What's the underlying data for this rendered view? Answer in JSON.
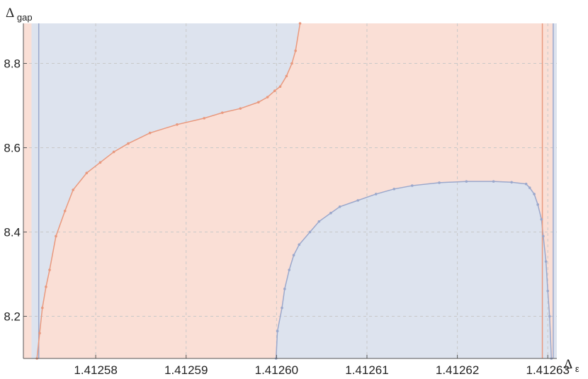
{
  "chart_data": {
    "type": "area",
    "xlabel": {
      "main": "Δ",
      "sub": "ε"
    },
    "ylabel": {
      "main": "Δ",
      "sub": "gap"
    },
    "xlim": [
      1.412572,
      1.412631
    ],
    "ylim": [
      8.1,
      8.895
    ],
    "x_ticks": [
      1.41258,
      1.41259,
      1.4126,
      1.41261,
      1.41262,
      1.41263
    ],
    "x_tick_labels": [
      "1.41258",
      "1.41259",
      "1.41260",
      "1.41261",
      "1.41262",
      "1.41263"
    ],
    "y_ticks": [
      8.2,
      8.4,
      8.6,
      8.8
    ],
    "y_tick_labels": [
      "8.2",
      "8.4",
      "8.6",
      "8.8"
    ],
    "grid": true,
    "colors": {
      "allowed_fill": "#fadfd6",
      "excluded_fill": "#dde3ee",
      "boundary_orange": "#e9997e",
      "boundary_blue": "#9ba8cc",
      "gridline": "#c8c8c8",
      "axis": "#555555"
    },
    "regions": [
      {
        "type": "excluded-strip-left",
        "x": [
          1.4125729,
          1.4125737
        ]
      },
      {
        "type": "excluded-strip-right",
        "x": [
          1.4126306,
          1.412631
        ]
      }
    ],
    "boundary_upper_left": [
      [
        1.4125735,
        8.1
      ],
      [
        1.4125738,
        8.16
      ],
      [
        1.4125741,
        8.22
      ],
      [
        1.4125745,
        8.27
      ],
      [
        1.4125749,
        8.31
      ],
      [
        1.4125756,
        8.39
      ],
      [
        1.4125766,
        8.45
      ],
      [
        1.4125775,
        8.5
      ],
      [
        1.412579,
        8.54
      ],
      [
        1.4125805,
        8.565
      ],
      [
        1.412582,
        8.59
      ],
      [
        1.4125836,
        8.61
      ],
      [
        1.412586,
        8.635
      ],
      [
        1.412589,
        8.655
      ],
      [
        1.412592,
        8.67
      ],
      [
        1.412594,
        8.683
      ],
      [
        1.412596,
        8.693
      ],
      [
        1.412598,
        8.708
      ],
      [
        1.412599,
        8.72
      ],
      [
        1.4125998,
        8.735
      ],
      [
        1.4126004,
        8.745
      ],
      [
        1.4126011,
        8.77
      ],
      [
        1.4126017,
        8.8
      ],
      [
        1.4126021,
        8.83
      ],
      [
        1.4126026,
        8.895
      ]
    ],
    "boundary_lower_right": [
      [
        1.41259995,
        8.1
      ],
      [
        1.4126001,
        8.165
      ],
      [
        1.4126006,
        8.22
      ],
      [
        1.4126009,
        8.265
      ],
      [
        1.4126014,
        8.31
      ],
      [
        1.4126019,
        8.345
      ],
      [
        1.4126025,
        8.37
      ],
      [
        1.4126037,
        8.4
      ],
      [
        1.4126047,
        8.425
      ],
      [
        1.412606,
        8.445
      ],
      [
        1.412607,
        8.46
      ],
      [
        1.412609,
        8.475
      ],
      [
        1.412611,
        8.49
      ],
      [
        1.412613,
        8.502
      ],
      [
        1.412615,
        8.51
      ],
      [
        1.412618,
        8.517
      ],
      [
        1.412621,
        8.52
      ],
      [
        1.412624,
        8.52
      ],
      [
        1.412626,
        8.518
      ],
      [
        1.4126276,
        8.514
      ],
      [
        1.412628,
        8.505
      ],
      [
        1.4126285,
        8.49
      ],
      [
        1.4126289,
        8.465
      ],
      [
        1.4126293,
        8.43
      ],
      [
        1.4126295,
        8.39
      ],
      [
        1.4126298,
        8.33
      ],
      [
        1.41263,
        8.26
      ],
      [
        1.4126302,
        8.2
      ],
      [
        1.4126304,
        8.1
      ]
    ],
    "boundary_vertical_right": [
      [
        1.4126294,
        8.1
      ],
      [
        1.4126294,
        8.895
      ]
    ]
  }
}
